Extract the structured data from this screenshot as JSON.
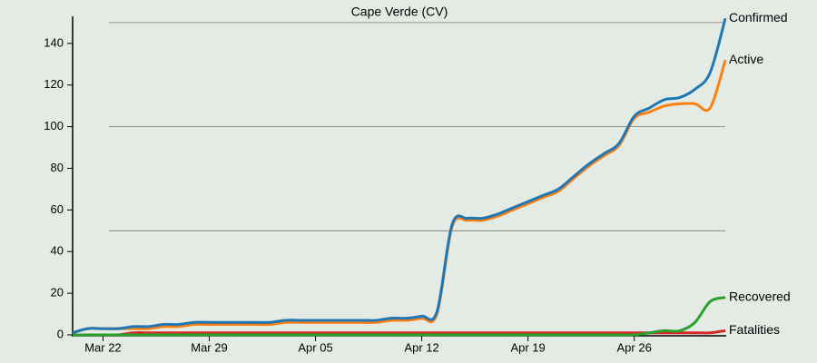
{
  "chart_data": {
    "type": "line",
    "title": "Cape Verde (CV)",
    "categories": [
      null,
      null,
      "Mar 22",
      null,
      null,
      null,
      null,
      null,
      null,
      "Mar 29",
      null,
      null,
      null,
      null,
      null,
      null,
      "Apr 05",
      null,
      null,
      null,
      null,
      null,
      null,
      "Apr 12",
      null,
      null,
      null,
      null,
      null,
      null,
      "Apr 19",
      null,
      null,
      null,
      null,
      null,
      null,
      "Apr 26",
      null,
      null,
      null,
      null,
      null,
      null
    ],
    "series": [
      {
        "name": "Confirmed",
        "color": "#1f77b4",
        "values": [
          1,
          3,
          3,
          3,
          4,
          4,
          5,
          5,
          6,
          6,
          6,
          6,
          6,
          6,
          7,
          7,
          7,
          7,
          7,
          7,
          7,
          8,
          8,
          9,
          11,
          53,
          56,
          56,
          58,
          61,
          64,
          67,
          70,
          76,
          82,
          87,
          92,
          105,
          109,
          113,
          114,
          118,
          126,
          152
        ]
      },
      {
        "name": "Active",
        "color": "#ff7f0e",
        "values": [
          1,
          3,
          3,
          3,
          3,
          3,
          4,
          4,
          5,
          5,
          5,
          5,
          5,
          5,
          6,
          6,
          6,
          6,
          6,
          6,
          6,
          7,
          7,
          8,
          10,
          52,
          55,
          55,
          57,
          60,
          63,
          66,
          69,
          75,
          81,
          86,
          91,
          104,
          107,
          110,
          111,
          111,
          109,
          132
        ]
      },
      {
        "name": "Recovered",
        "color": "#2ca02c",
        "values": [
          0,
          0,
          0,
          0,
          0,
          0,
          0,
          0,
          0,
          0,
          0,
          0,
          0,
          0,
          0,
          0,
          0,
          0,
          0,
          0,
          0,
          0,
          0,
          0,
          0,
          0,
          0,
          0,
          0,
          0,
          0,
          0,
          0,
          0,
          0,
          0,
          0,
          0,
          1,
          2,
          2,
          6,
          16,
          18
        ]
      },
      {
        "name": "Fatalities",
        "color": "#d62728",
        "values": [
          0,
          0,
          0,
          0,
          1,
          1,
          1,
          1,
          1,
          1,
          1,
          1,
          1,
          1,
          1,
          1,
          1,
          1,
          1,
          1,
          1,
          1,
          1,
          1,
          1,
          1,
          1,
          1,
          1,
          1,
          1,
          1,
          1,
          1,
          1,
          1,
          1,
          1,
          1,
          1,
          1,
          1,
          1,
          2
        ]
      }
    ],
    "ylim": [
      0,
      153
    ],
    "yticks": [
      0,
      20,
      40,
      60,
      80,
      100,
      120,
      140
    ],
    "hgrid": [
      50,
      100,
      150
    ]
  }
}
